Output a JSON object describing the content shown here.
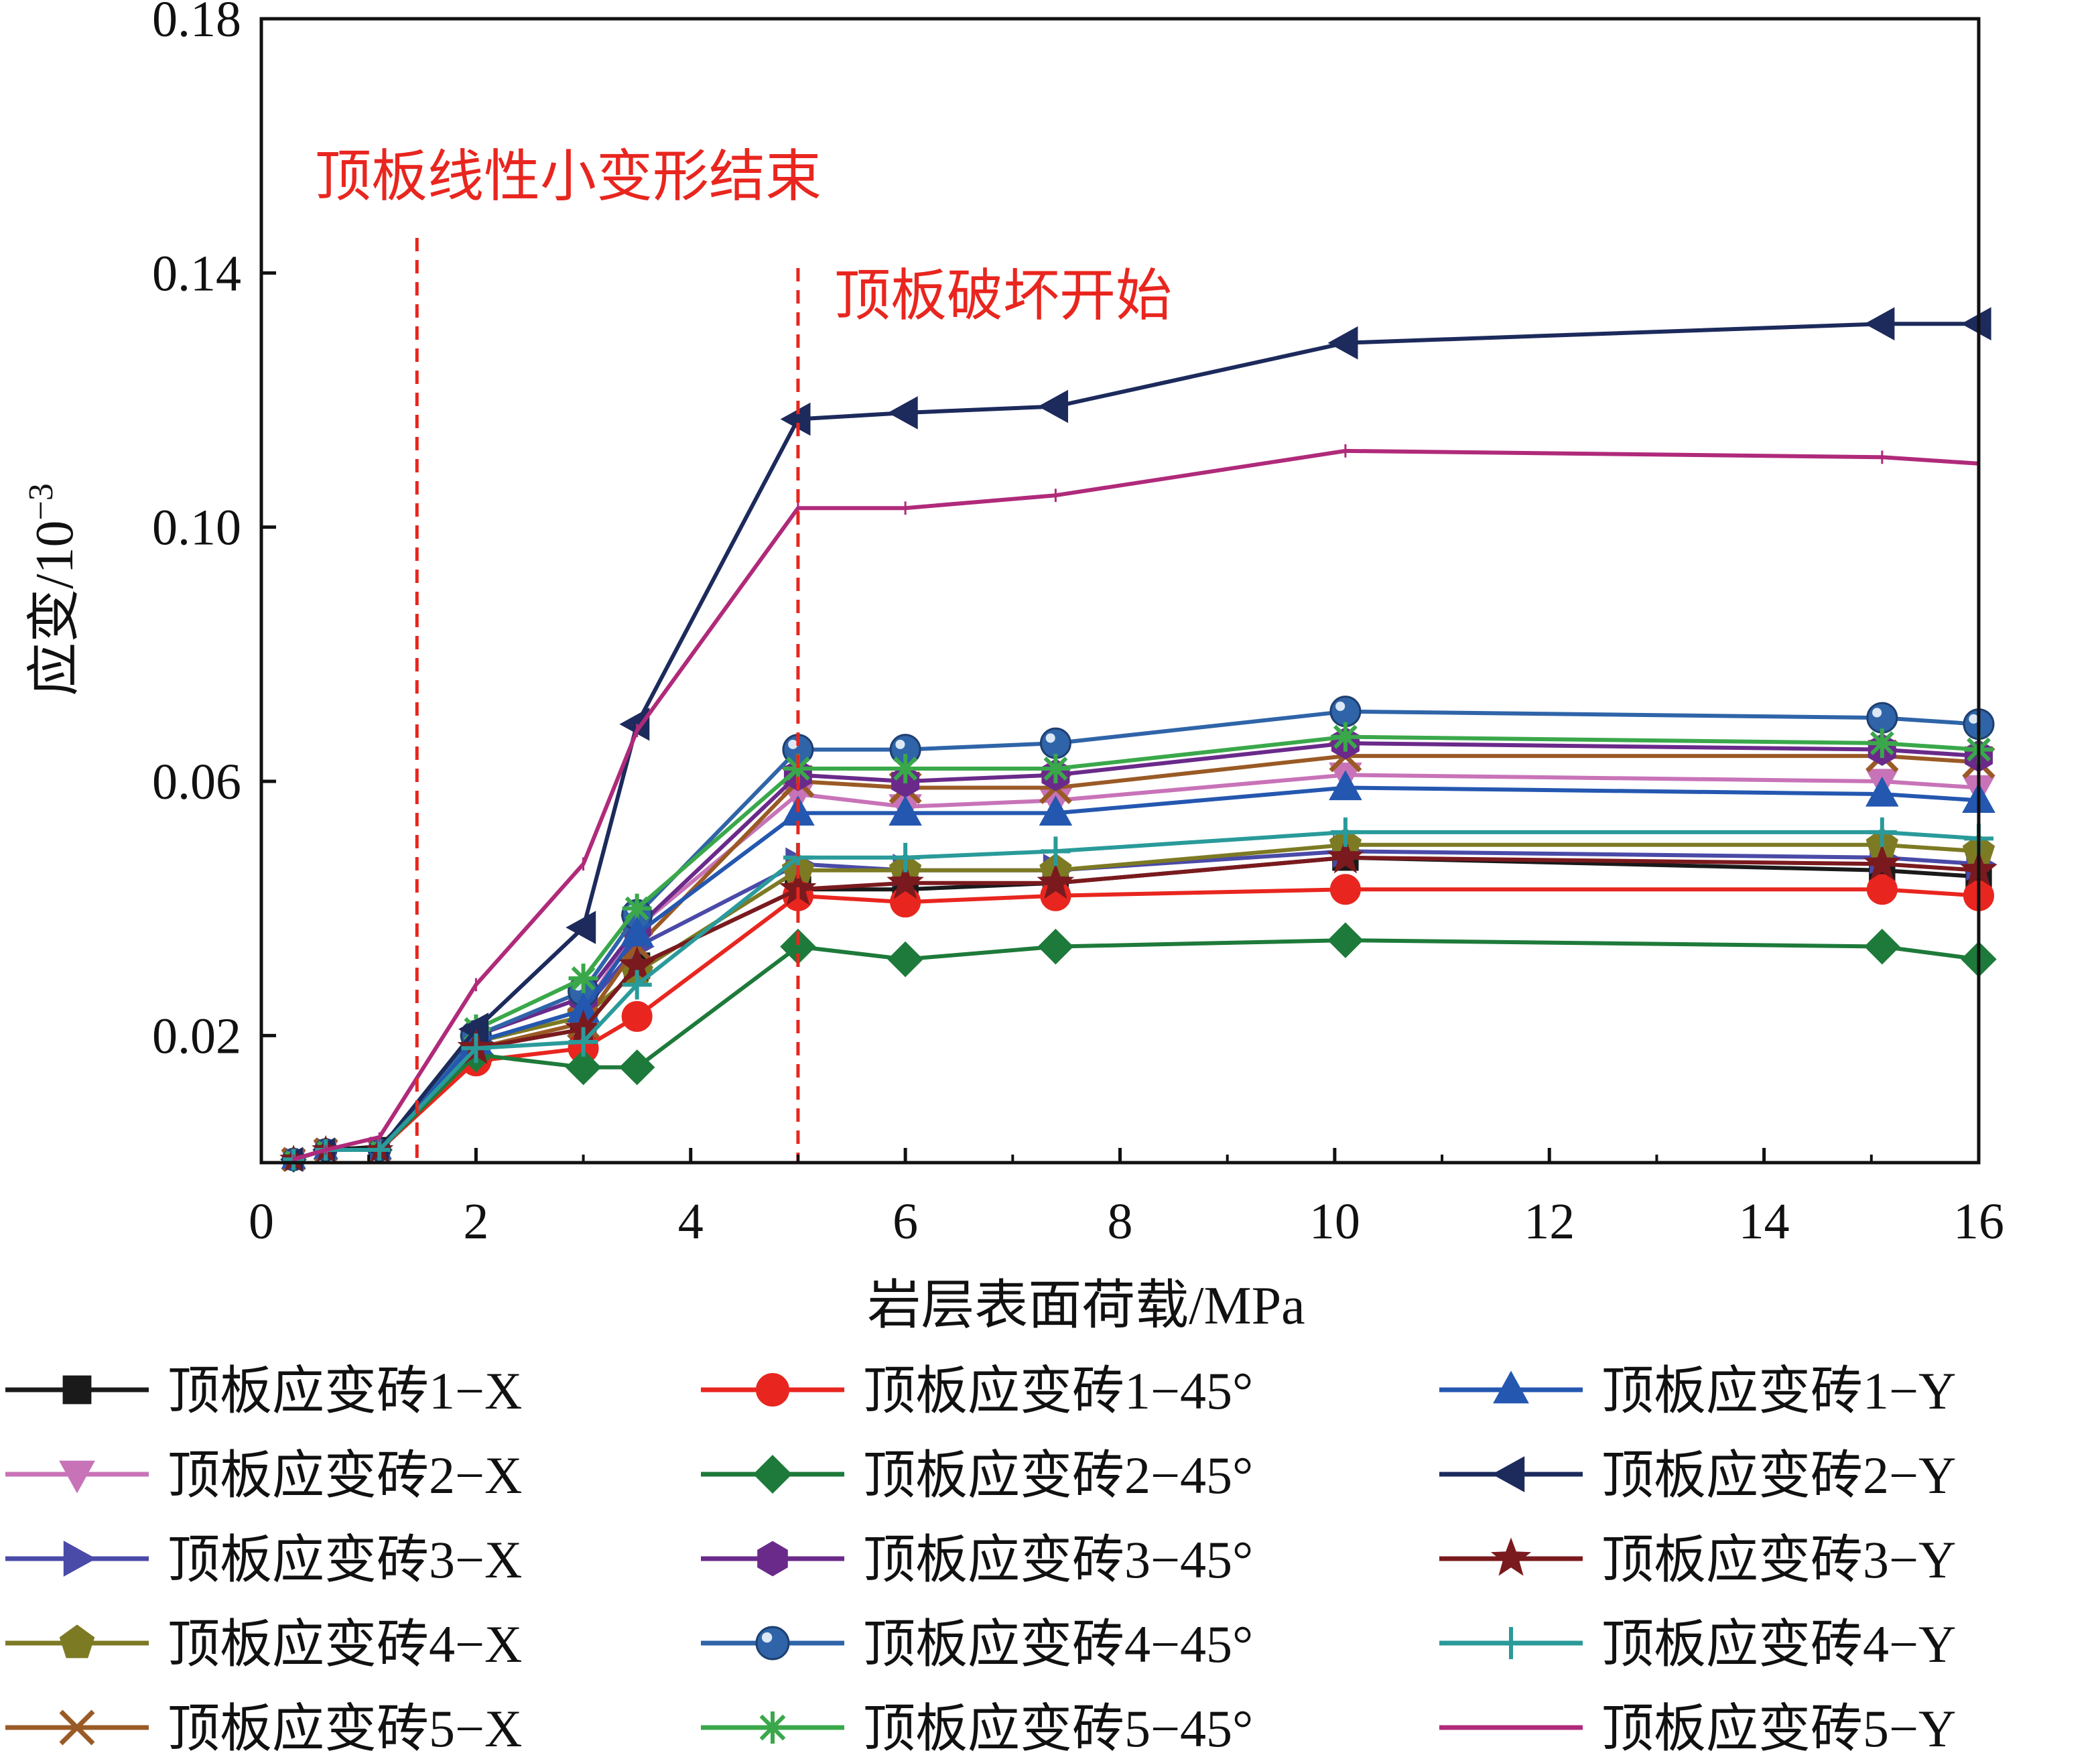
{
  "chart_data": {
    "type": "line",
    "title": "",
    "xlabel": "岩层表面荷载/MPa",
    "ylabel": "应变/10",
    "ylabel_exponent": "−3",
    "xlim": [
      0,
      16
    ],
    "ylim": [
      0,
      0.18
    ],
    "xticks": [
      0,
      2,
      4,
      6,
      8,
      10,
      12,
      14,
      16
    ],
    "yticks": [
      0.02,
      0.06,
      0.1,
      0.14,
      0.18
    ],
    "xtick_labels": [
      "0",
      "2",
      "4",
      "6",
      "8",
      "10",
      "12",
      "14",
      "16"
    ],
    "ytick_labels": [
      "0.02",
      "0.06",
      "0.10",
      "0.14",
      "0.18"
    ],
    "grid": false,
    "legend_position": "bottom",
    "annotations": [
      {
        "text": "顶板线性小变形结束",
        "x": 1.45,
        "color": "#e8261f"
      },
      {
        "text": "顶板破坏开始",
        "x": 5.0,
        "color": "#e8261f"
      }
    ],
    "x": [
      0.3,
      0.6,
      1.1,
      2.0,
      3.0,
      3.5,
      5.0,
      6.0,
      7.4,
      10.1,
      15.1,
      16.0
    ],
    "series": [
      {
        "name": "顶板应变砖1−X",
        "color": "#1a1a1a",
        "marker": "square",
        "values": [
          0.0005,
          0.002,
          0.0025,
          0.018,
          0.021,
          0.031,
          0.043,
          0.043,
          0.044,
          0.048,
          0.046,
          0.045
        ]
      },
      {
        "name": "顶板应变砖2−X",
        "color": "#c873b8",
        "marker": "triangle-down",
        "values": [
          0.0005,
          0.002,
          0.002,
          0.019,
          0.024,
          0.037,
          0.058,
          0.056,
          0.057,
          0.061,
          0.06,
          0.059
        ]
      },
      {
        "name": "顶板应变砖3−X",
        "color": "#4a4aa8",
        "marker": "triangle-right",
        "values": [
          0.0005,
          0.002,
          0.002,
          0.019,
          0.024,
          0.034,
          0.047,
          0.046,
          0.046,
          0.049,
          0.048,
          0.047
        ]
      },
      {
        "name": "顶板应变砖4−X",
        "color": "#7d7a24",
        "marker": "pentagon",
        "values": [
          0.0005,
          0.002,
          0.002,
          0.019,
          0.023,
          0.03,
          0.046,
          0.046,
          0.046,
          0.05,
          0.05,
          0.049
        ]
      },
      {
        "name": "顶板应变砖5−X",
        "color": "#9a5a25",
        "marker": "x",
        "values": [
          0.0005,
          0.002,
          0.002,
          0.018,
          0.022,
          0.034,
          0.06,
          0.059,
          0.059,
          0.064,
          0.064,
          0.063
        ]
      },
      {
        "name": "顶板应变砖1−45°",
        "color": "#e8261f",
        "marker": "circle",
        "values": [
          0.0005,
          0.002,
          0.002,
          0.016,
          0.018,
          0.023,
          0.042,
          0.041,
          0.042,
          0.043,
          0.043,
          0.042
        ]
      },
      {
        "name": "顶板应变砖2−45°",
        "color": "#1e7a3a",
        "marker": "diamond",
        "values": [
          0.0005,
          0.002,
          0.002,
          0.017,
          0.015,
          0.015,
          0.034,
          0.032,
          0.034,
          0.035,
          0.034,
          0.032
        ]
      },
      {
        "name": "顶板应变砖3−45°",
        "color": "#6a2a8a",
        "marker": "hexagon",
        "values": [
          0.0005,
          0.002,
          0.002,
          0.02,
          0.026,
          0.037,
          0.061,
          0.06,
          0.061,
          0.066,
          0.065,
          0.064
        ]
      },
      {
        "name": "顶板应变砖4−45°",
        "color": "#2f64a8",
        "marker": "sphere",
        "values": [
          0.0005,
          0.002,
          0.002,
          0.02,
          0.027,
          0.039,
          0.065,
          0.065,
          0.066,
          0.071,
          0.07,
          0.069
        ]
      },
      {
        "name": "顶板应变砖5−45°",
        "color": "#3aa84a",
        "marker": "asterisk",
        "values": [
          0.0005,
          0.002,
          0.002,
          0.021,
          0.029,
          0.04,
          0.062,
          0.062,
          0.062,
          0.067,
          0.066,
          0.065
        ]
      },
      {
        "name": "顶板应变砖1−Y",
        "color": "#2457b0",
        "marker": "triangle-up",
        "values": [
          0.0005,
          0.002,
          0.002,
          0.019,
          0.024,
          0.036,
          0.055,
          0.055,
          0.055,
          0.059,
          0.058,
          0.057
        ]
      },
      {
        "name": "顶板应变砖2−Y",
        "color": "#1c2a5c",
        "marker": "triangle-left",
        "values": [
          0.0005,
          0.002,
          0.002,
          0.021,
          0.037,
          0.069,
          0.117,
          0.118,
          0.119,
          0.129,
          0.132,
          0.132
        ]
      },
      {
        "name": "顶板应变砖3−Y",
        "color": "#7a1a1e",
        "marker": "star",
        "values": [
          0.0005,
          0.002,
          0.002,
          0.018,
          0.021,
          0.031,
          0.043,
          0.044,
          0.044,
          0.048,
          0.047,
          0.046
        ]
      },
      {
        "name": "顶板应变砖4−Y",
        "color": "#2a9a9a",
        "marker": "plus",
        "values": [
          0.0005,
          0.002,
          0.002,
          0.018,
          0.019,
          0.028,
          0.048,
          0.048,
          0.049,
          0.052,
          0.052,
          0.051
        ]
      },
      {
        "name": "顶板应变砖5−Y",
        "color": "#b02a7a",
        "marker": "none",
        "values": [
          0.0005,
          0.002,
          0.004,
          0.028,
          0.047,
          0.068,
          0.103,
          0.103,
          0.105,
          0.112,
          0.111,
          0.11
        ]
      }
    ]
  }
}
